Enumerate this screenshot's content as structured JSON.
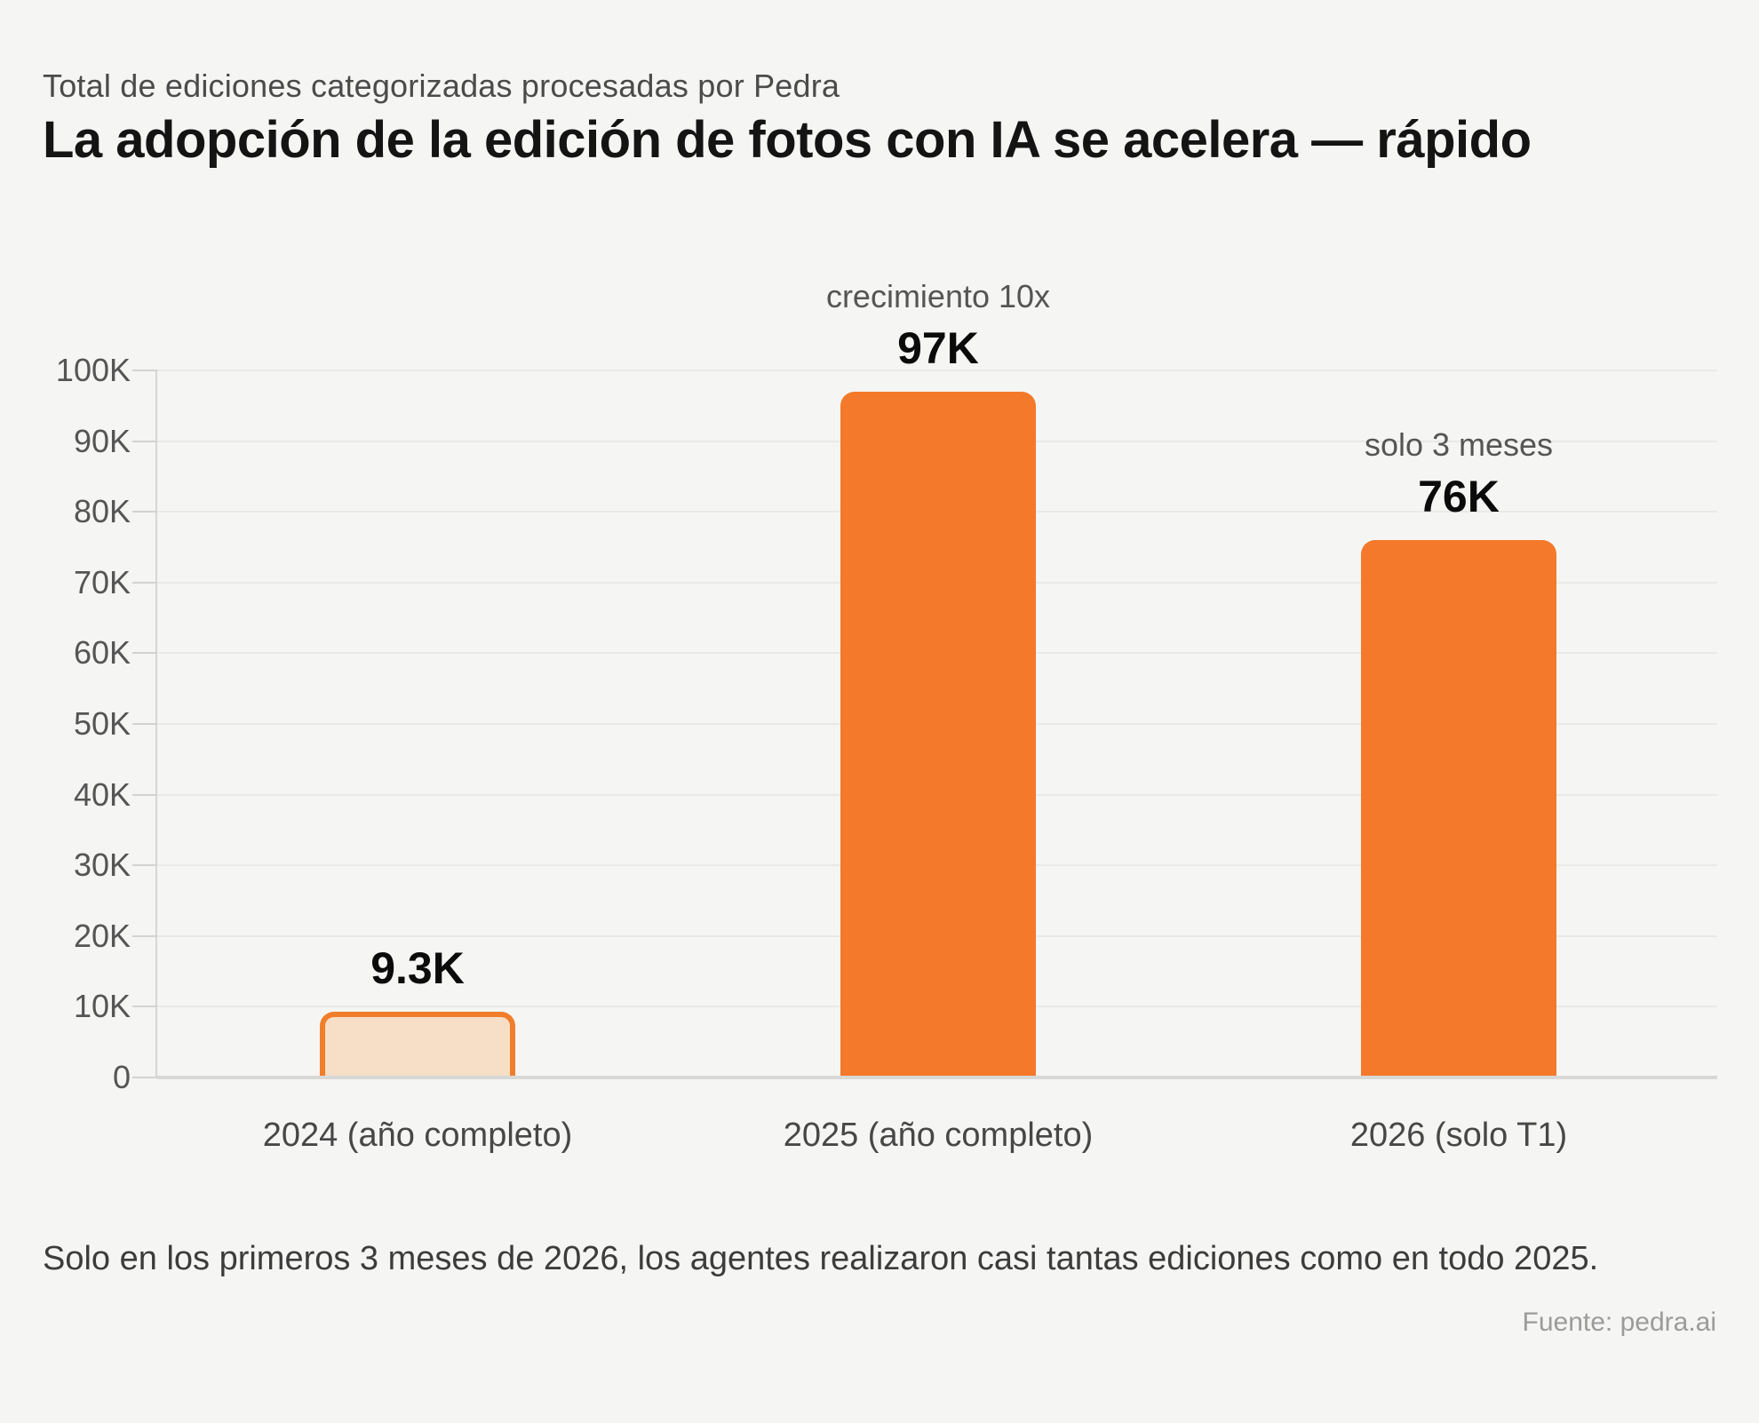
{
  "header": {
    "subtitle": "Total de ediciones categorizadas procesadas por Pedra",
    "title": "La adopción de la edición de fotos con IA se acelera — rápido"
  },
  "footer": {
    "note": "Solo en los primeros 3 meses de 2026, los agentes realizaron casi tantas ediciones como en todo 2025.",
    "source": "Fuente: pedra.ai"
  },
  "chart_data": {
    "type": "bar",
    "title": "La adopción de la edición de fotos con IA se acelera — rápido",
    "subtitle": "Total de ediciones categorizadas procesadas por Pedra",
    "xlabel": "",
    "ylabel": "",
    "ylim": [
      0,
      100000
    ],
    "grid": true,
    "legend": "none",
    "categories": [
      "2024 (año completo)",
      "2025 (año completo)",
      "2026 (solo T1)"
    ],
    "values": [
      9300,
      97000,
      76000
    ],
    "bars": [
      {
        "category": "2024 (año completo)",
        "value": 9300,
        "value_label": "9.3K",
        "annotation": "",
        "style": "outline"
      },
      {
        "category": "2025 (año completo)",
        "value": 97000,
        "value_label": "97K",
        "annotation": "crecimiento 10x",
        "style": "solid"
      },
      {
        "category": "2026 (solo T1)",
        "value": 76000,
        "value_label": "76K",
        "annotation": "solo 3 meses",
        "style": "solid"
      }
    ],
    "yticks": [
      {
        "value": 0,
        "label": "0"
      },
      {
        "value": 10000,
        "label": "10K"
      },
      {
        "value": 20000,
        "label": "20K"
      },
      {
        "value": 30000,
        "label": "30K"
      },
      {
        "value": 40000,
        "label": "40K"
      },
      {
        "value": 50000,
        "label": "50K"
      },
      {
        "value": 60000,
        "label": "60K"
      },
      {
        "value": 70000,
        "label": "70K"
      },
      {
        "value": 80000,
        "label": "80K"
      },
      {
        "value": 90000,
        "label": "90K"
      },
      {
        "value": 100000,
        "label": "100K"
      }
    ],
    "colors": {
      "bar_solid": "#F4792A",
      "bar_outline_stroke": "#F07E2B",
      "bar_outline_fill": "#F7DEC7",
      "background": "#F5F5F4"
    }
  }
}
